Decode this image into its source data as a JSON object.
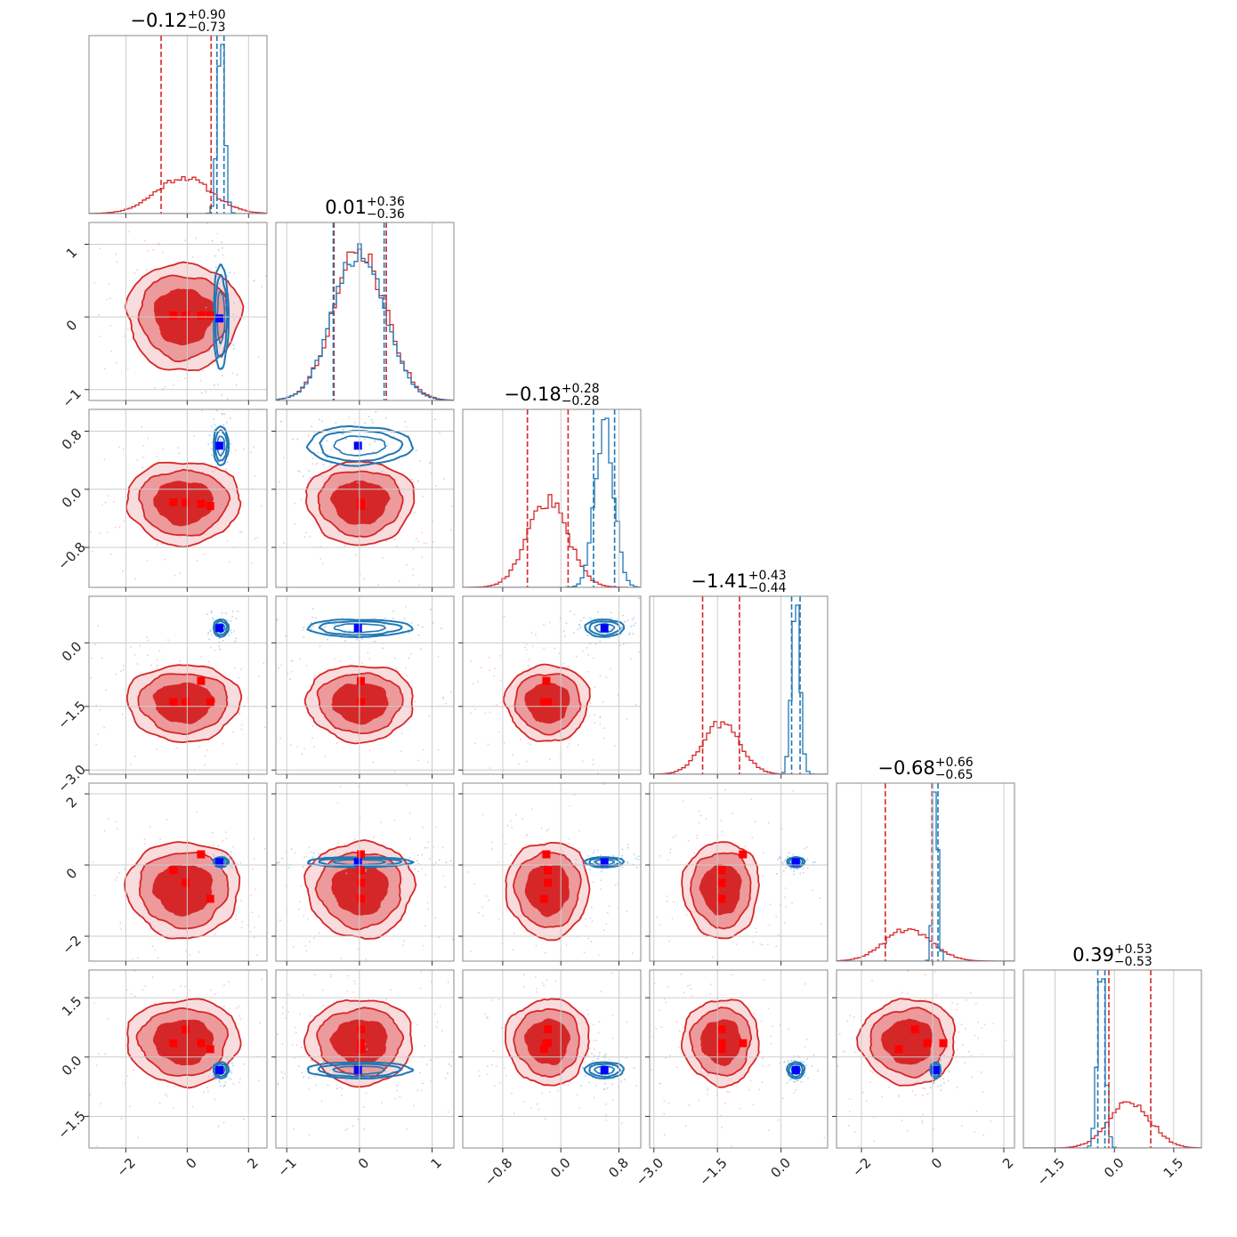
{
  "chart_data": {
    "type": "corner",
    "dimensions": 6,
    "grid": true,
    "colors": {
      "red_series": "#d62728",
      "red_mid": "#ec9a9b",
      "red_light": "#f9dcdd",
      "blue_series": "#1f77b4",
      "truth_marker": "#0000ff",
      "estimate_marker": "#ff0000",
      "gridline": "#cccccc",
      "axis_frame": "#888888"
    },
    "parameters": [
      {
        "title_value": "−0.12",
        "title_plus": "+0.90",
        "title_minus": "−0.73",
        "range": [
          -3.2,
          2.6
        ],
        "ticks": [
          -2,
          0,
          2
        ],
        "tick_labels": [
          "−2",
          "0",
          "2"
        ],
        "red_dist": {
          "mean": -0.12,
          "sd": 0.9,
          "q16": -0.85,
          "q84": 0.78
        },
        "blue_dist": {
          "mean": 1.1,
          "sd": 0.12,
          "q16": 0.97,
          "q84": 1.2
        },
        "truth": 1.05,
        "estimates": [
          -0.45,
          -0.05,
          0.45,
          0.75
        ]
      },
      {
        "title_value": "0.01",
        "title_plus": "+0.36",
        "title_minus": "−0.36",
        "range": [
          -1.15,
          1.3
        ],
        "ticks": [
          -1,
          0,
          1
        ],
        "tick_labels": [
          "−1",
          "0",
          "1"
        ],
        "red_dist": {
          "mean": 0.01,
          "sd": 0.36,
          "q16": -0.35,
          "q84": 0.37
        },
        "blue_dist": {
          "mean": 0.0,
          "sd": 0.35,
          "q16": -0.36,
          "q84": 0.34
        },
        "truth": -0.02,
        "estimates": [
          0.02,
          0.02,
          0.02,
          0.02
        ]
      },
      {
        "title_value": "−0.18",
        "title_plus": "+0.28",
        "title_minus": "−0.28",
        "range": [
          -1.35,
          1.1
        ],
        "ticks": [
          -0.8,
          0.0,
          0.8
        ],
        "tick_labels": [
          "−0.8",
          "0.0",
          "0.8"
        ],
        "red_dist": {
          "mean": -0.18,
          "sd": 0.28,
          "q16": -0.46,
          "q84": 0.1
        },
        "blue_dist": {
          "mean": 0.6,
          "sd": 0.13,
          "q16": 0.45,
          "q84": 0.74
        },
        "truth": 0.6,
        "estimates": [
          -0.18,
          -0.18,
          -0.2,
          -0.23
        ]
      },
      {
        "title_value": "−1.41",
        "title_plus": "+0.43",
        "title_minus": "−0.44",
        "range": [
          -3.1,
          1.1
        ],
        "ticks": [
          -3.0,
          -1.5,
          0.0
        ],
        "tick_labels": [
          "−3.0",
          "−1.5",
          "0.0"
        ],
        "red_dist": {
          "mean": -1.41,
          "sd": 0.44,
          "q16": -1.85,
          "q84": -0.98
        },
        "blue_dist": {
          "mean": 0.35,
          "sd": 0.1,
          "q16": 0.25,
          "q84": 0.45
        },
        "truth": 0.35,
        "estimates": [
          -1.4,
          -1.4,
          -0.9,
          -1.4
        ]
      },
      {
        "title_value": "−0.68",
        "title_plus": "+0.66",
        "title_minus": "−0.65",
        "range": [
          -2.7,
          2.3
        ],
        "ticks": [
          -2,
          0,
          2
        ],
        "tick_labels": [
          "−2",
          "0",
          "2"
        ],
        "red_dist": {
          "mean": -0.68,
          "sd": 0.66,
          "q16": -1.33,
          "q84": -0.02
        },
        "blue_dist": {
          "mean": 0.08,
          "sd": 0.07,
          "q16": 0.0,
          "q84": 0.15
        },
        "truth": 0.08,
        "estimates": [
          -0.15,
          -0.5,
          0.3,
          -0.95
        ]
      },
      {
        "title_value": "0.39",
        "title_plus": "+0.53",
        "title_minus": "−0.53",
        "range": [
          -2.3,
          2.2
        ],
        "ticks": [
          -1.5,
          0.0,
          1.5
        ],
        "tick_labels": [
          "−1.5",
          "0.0",
          "1.5"
        ],
        "red_dist": {
          "mean": 0.39,
          "sd": 0.53,
          "q16": -0.14,
          "q84": 0.92
        },
        "blue_dist": {
          "mean": -0.33,
          "sd": 0.1,
          "q16": -0.42,
          "q84": -0.24
        },
        "truth": -0.33,
        "estimates": [
          0.35,
          0.7,
          0.35,
          0.2
        ]
      }
    ]
  }
}
